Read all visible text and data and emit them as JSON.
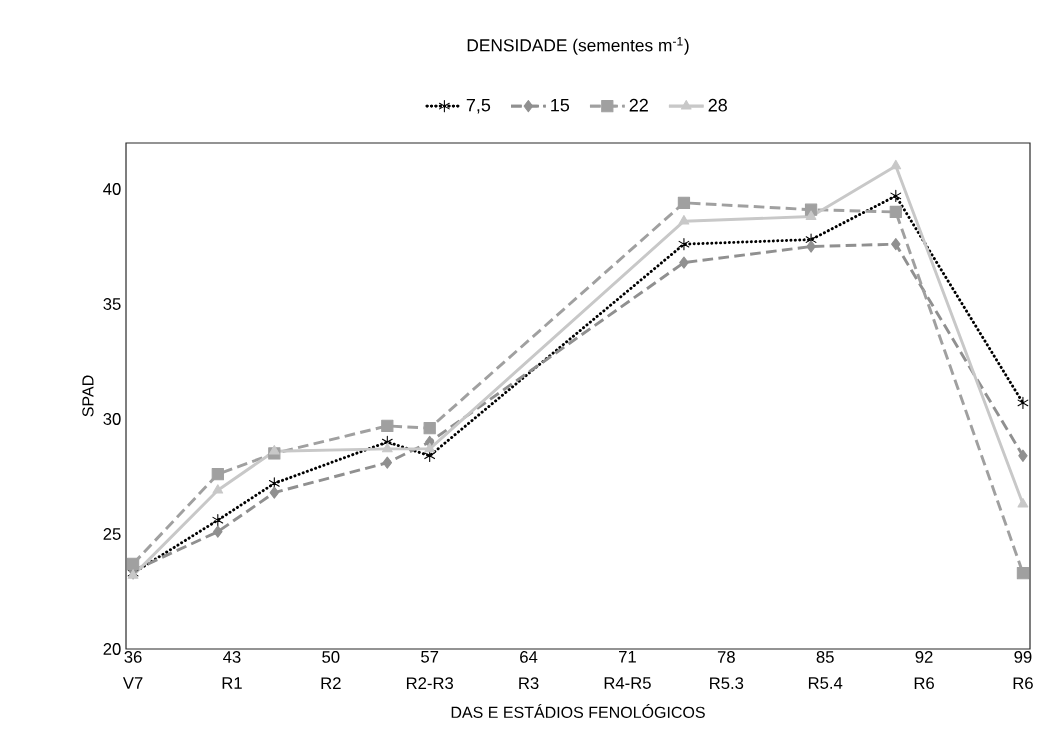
{
  "chart_data": {
    "type": "line",
    "legend_title": "DENSIDADE (sementes m$^{-1}$)",
    "xlabel": "DAS E ESTÁDIOS FENOLÓGICOS",
    "ylabel": "SPAD",
    "x": [
      36,
      42,
      46,
      54,
      57,
      75,
      84,
      90,
      99
    ],
    "xlim": [
      35.5,
      99.5
    ],
    "xticks": [
      36,
      43,
      50,
      57,
      64,
      71,
      78,
      85,
      92,
      99
    ],
    "annotations": [
      "V7",
      "R1",
      "R2",
      "R2-R3",
      "R3",
      "R4-R5",
      "R5.3",
      "R5.4",
      "R6",
      "R6"
    ],
    "ylim": [
      20,
      42
    ],
    "yticks": [
      20,
      25,
      30,
      35,
      40
    ],
    "legend": "top",
    "grid": false,
    "series": [
      {
        "name": "7,5",
        "color": "#000000",
        "marker": "cross",
        "line_style": "dotted",
        "values": [
          23.3,
          25.6,
          27.2,
          29.0,
          28.4,
          37.6,
          37.8,
          39.7,
          30.7
        ]
      },
      {
        "name": "15",
        "color": "#909090",
        "marker": "diamond",
        "line_style": "dashed",
        "values": [
          23.4,
          25.1,
          26.8,
          28.1,
          29.0,
          36.8,
          37.5,
          37.6,
          28.4
        ]
      },
      {
        "name": "22",
        "color": "#a0a0a0",
        "marker": "square",
        "line_style": "dashed",
        "values": [
          23.7,
          27.6,
          28.5,
          29.7,
          29.6,
          39.4,
          39.1,
          39.0,
          23.3
        ]
      },
      {
        "name": "28",
        "color": "#c8c8c8",
        "marker": "triangle",
        "line_style": "solid",
        "values": [
          23.2,
          26.9,
          28.6,
          28.7,
          28.7,
          38.6,
          38.8,
          41.0,
          26.3
        ]
      }
    ]
  }
}
